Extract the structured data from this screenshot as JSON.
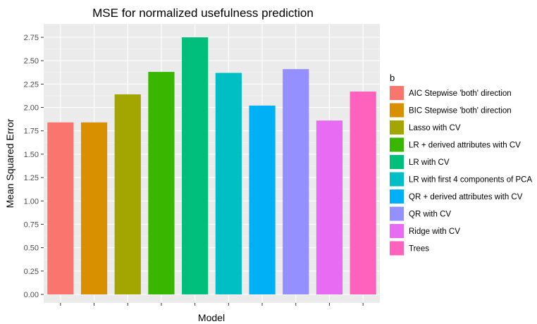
{
  "chart_data": {
    "type": "bar",
    "title": "MSE for normalized usefulness prediction",
    "xlabel": "Model",
    "ylabel": "Mean Squared Error",
    "ylim": [
      0,
      2.84
    ],
    "yticks": [
      "0.00",
      "0.25",
      "0.50",
      "0.75",
      "1.00",
      "1.25",
      "1.50",
      "1.75",
      "2.00",
      "2.25",
      "2.50",
      "2.75"
    ],
    "grid": true,
    "legend_title": "b",
    "legend_position": "right",
    "categories": [
      "AIC Stepwise 'both' direction",
      "BIC Stepwise 'both' direction",
      "Lasso with CV",
      "LR + derived attributes with CV",
      "LR with CV",
      "LR with first 4 components of PCA",
      "QR + derived attributes with CV",
      "QR with CV",
      "Ridge with CV",
      "Trees"
    ],
    "values": [
      1.84,
      1.84,
      2.14,
      2.38,
      2.75,
      2.37,
      2.02,
      2.41,
      1.86,
      2.17
    ],
    "colors": [
      "#F8766D",
      "#D89000",
      "#A3A500",
      "#39B600",
      "#00BF7D",
      "#00BFC4",
      "#00B0F6",
      "#9590FF",
      "#E76BF3",
      "#FF62BC"
    ]
  }
}
